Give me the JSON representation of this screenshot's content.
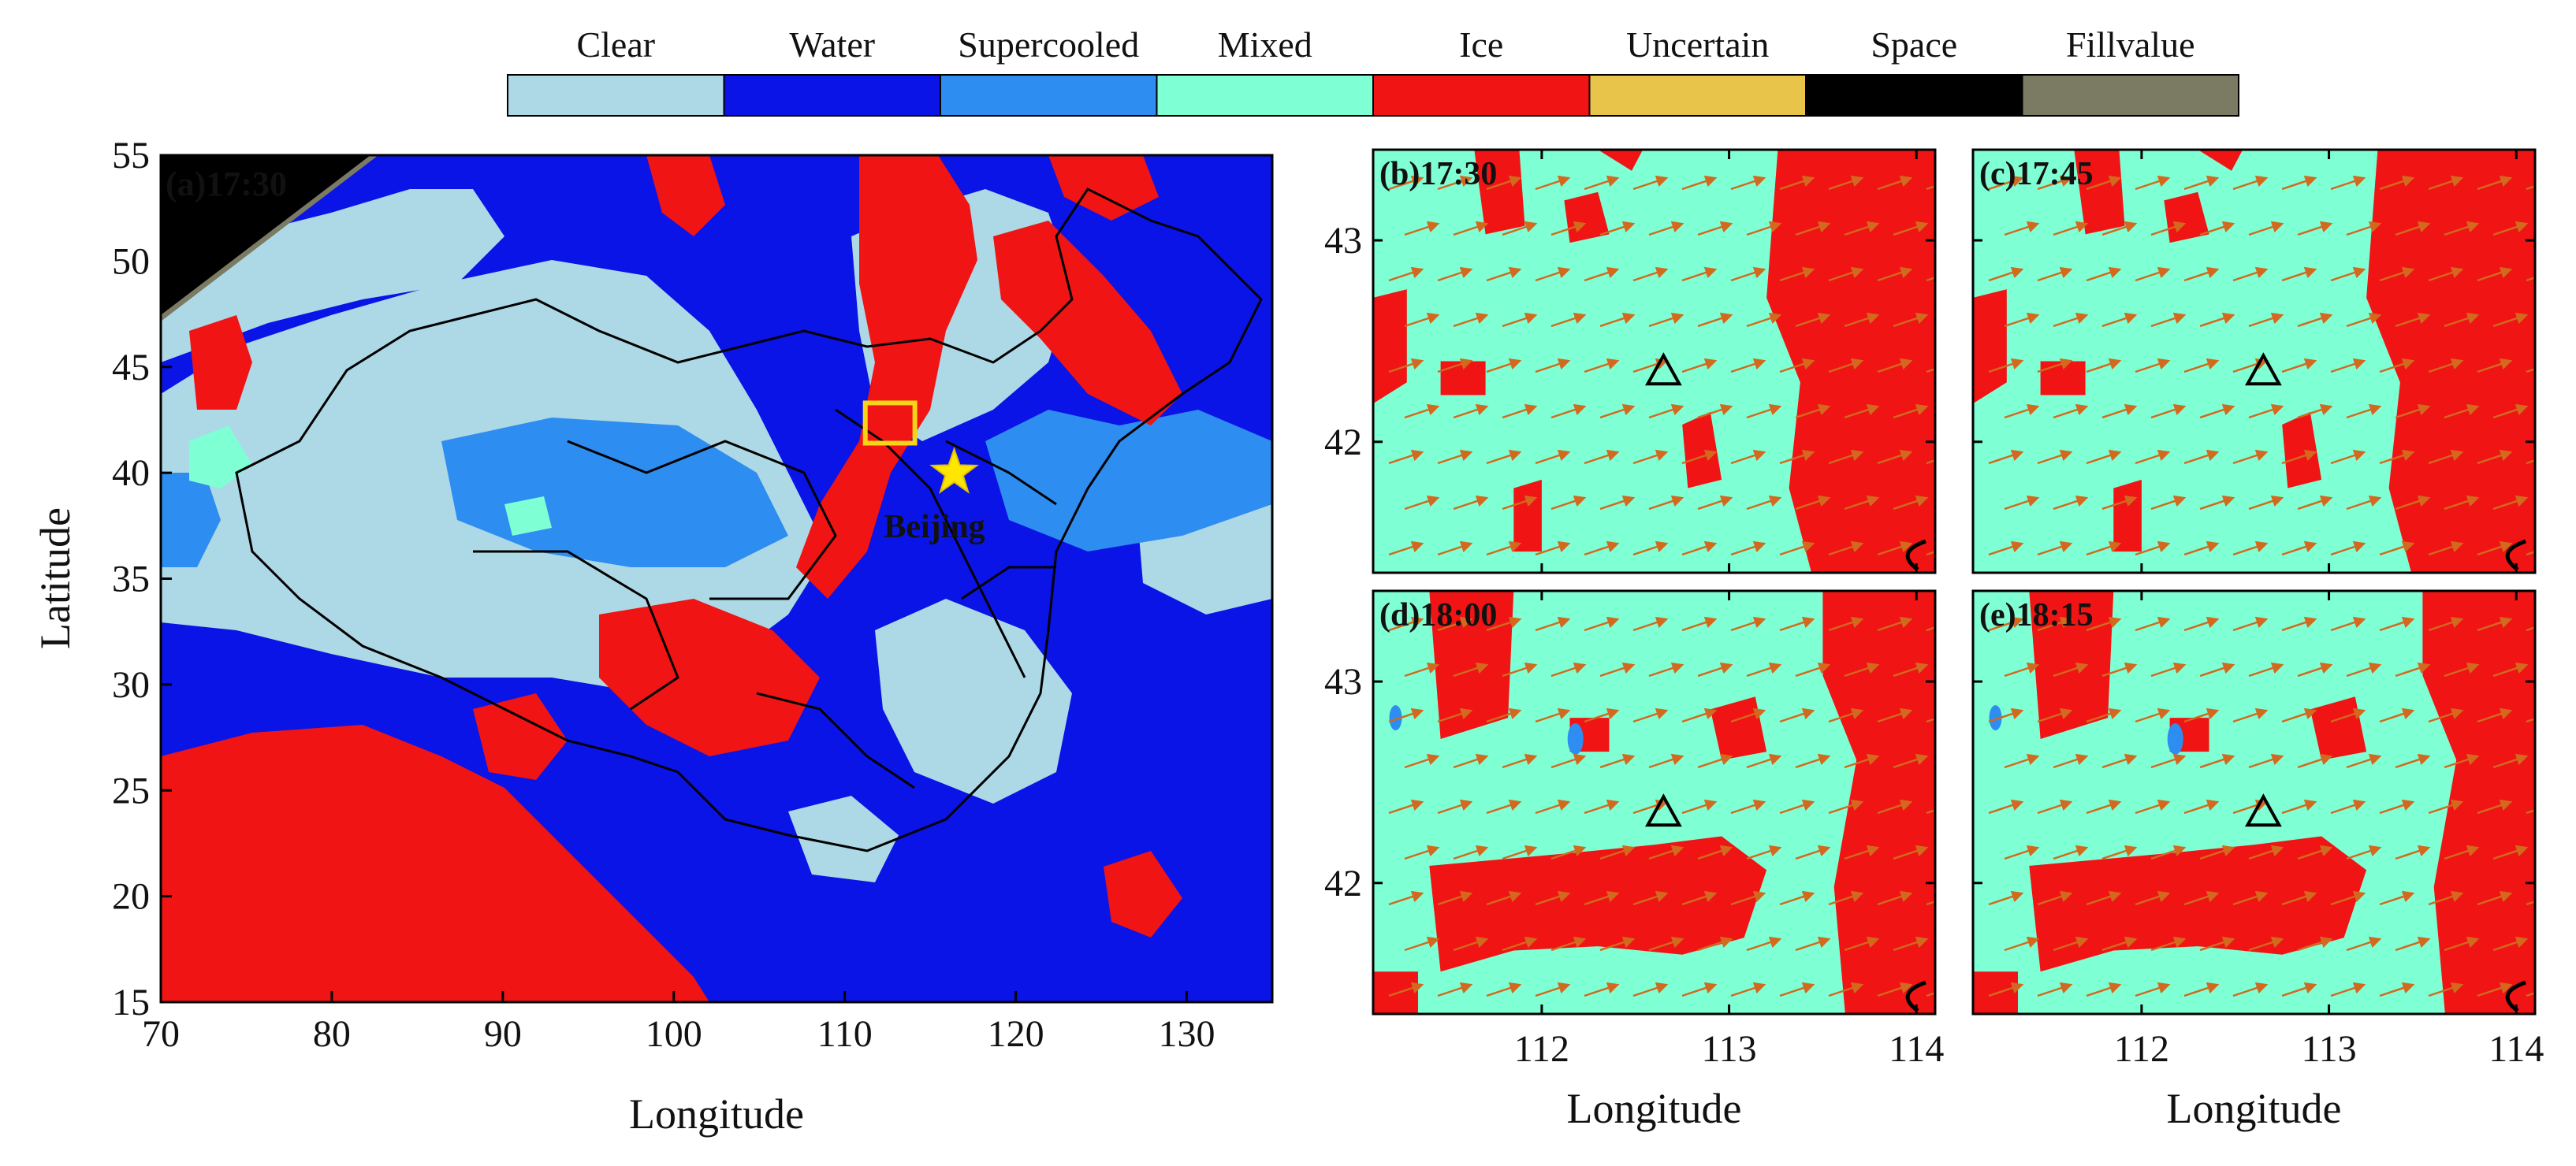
{
  "legend": {
    "items": [
      {
        "label": "Clear",
        "color": "#add8e6"
      },
      {
        "label": "Water",
        "color": "#0a14e6"
      },
      {
        "label": "Supercooled",
        "color": "#2e8df0"
      },
      {
        "label": "Mixed",
        "color": "#7fffd4"
      },
      {
        "label": "Ice",
        "color": "#f01414"
      },
      {
        "label": "Uncertain",
        "color": "#e8c44a"
      },
      {
        "label": "Space",
        "color": "#000000"
      },
      {
        "label": "Fillvalue",
        "color": "#7b7a62"
      }
    ]
  },
  "panels": {
    "a": {
      "label": "(a)17:30",
      "xlabel": "Longitude",
      "ylabel": "Latitude",
      "xticks": [
        70,
        80,
        90,
        100,
        110,
        120,
        130
      ],
      "yticks": [
        15,
        20,
        25,
        30,
        35,
        40,
        45,
        50,
        55
      ],
      "xlim": [
        70,
        135
      ],
      "ylim": [
        15,
        55
      ],
      "city": {
        "name": "Beijing",
        "lon": 116.4,
        "lat": 40.0,
        "marker": "star-icon"
      },
      "study_box": {
        "lon": [
          111.2,
          114.1
        ],
        "lat": [
          41.4,
          43.3
        ],
        "marker": "yellow-square-outline"
      }
    },
    "b": {
      "label": "(b)17:30"
    },
    "c": {
      "label": "(c)17:45"
    },
    "d": {
      "label": "(d)18:00"
    },
    "e": {
      "label": "(e)18:15"
    },
    "small_axes": {
      "xlabel": "Longitude",
      "xticks": [
        112,
        113,
        114
      ],
      "yticks": [
        42,
        43
      ],
      "xlim": [
        111.1,
        114.1
      ],
      "ylim": [
        41.35,
        43.45
      ],
      "site": {
        "lon": 112.65,
        "lat": 42.35,
        "marker": "triangle-icon"
      },
      "wind_vectors": "orange-arrow-icon"
    }
  }
}
